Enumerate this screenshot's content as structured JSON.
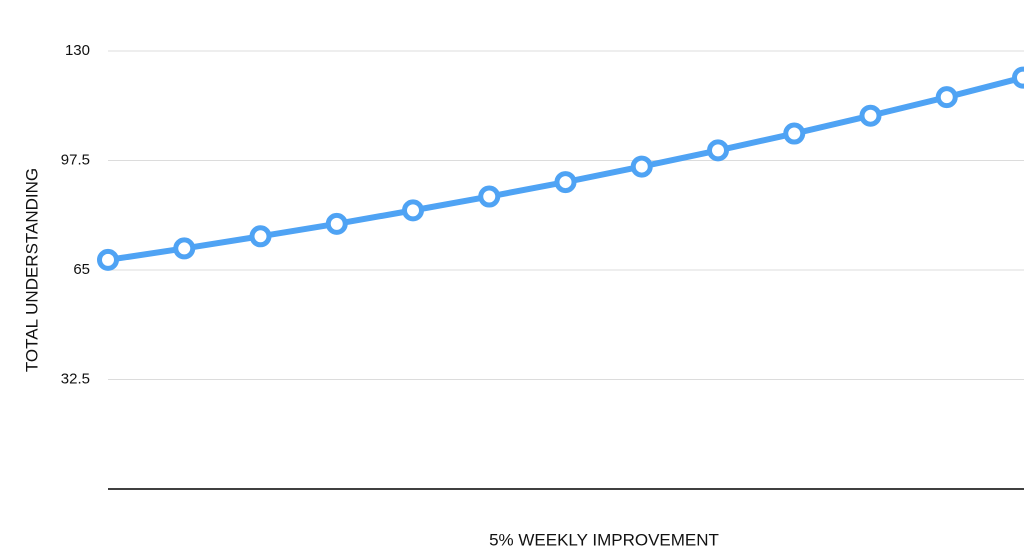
{
  "chart_data": {
    "type": "line",
    "x_label": "5% WEEKLY IMPROVEMENT",
    "y_label": "TOTAL UNDERSTANDING",
    "categories": [
      null,
      null,
      null,
      null,
      null,
      null,
      null,
      null,
      null,
      null,
      null,
      null,
      null
    ],
    "values": [
      68,
      71.4,
      75,
      78.7,
      82.7,
      86.8,
      91.1,
      95.7,
      100.5,
      105.5,
      110.8,
      116.3,
      122.1
    ],
    "color": "#4fa3f4",
    "ylim": [
      0,
      130
    ],
    "yticks": [
      32.5,
      65,
      97.5,
      130
    ],
    "grid": true
  }
}
